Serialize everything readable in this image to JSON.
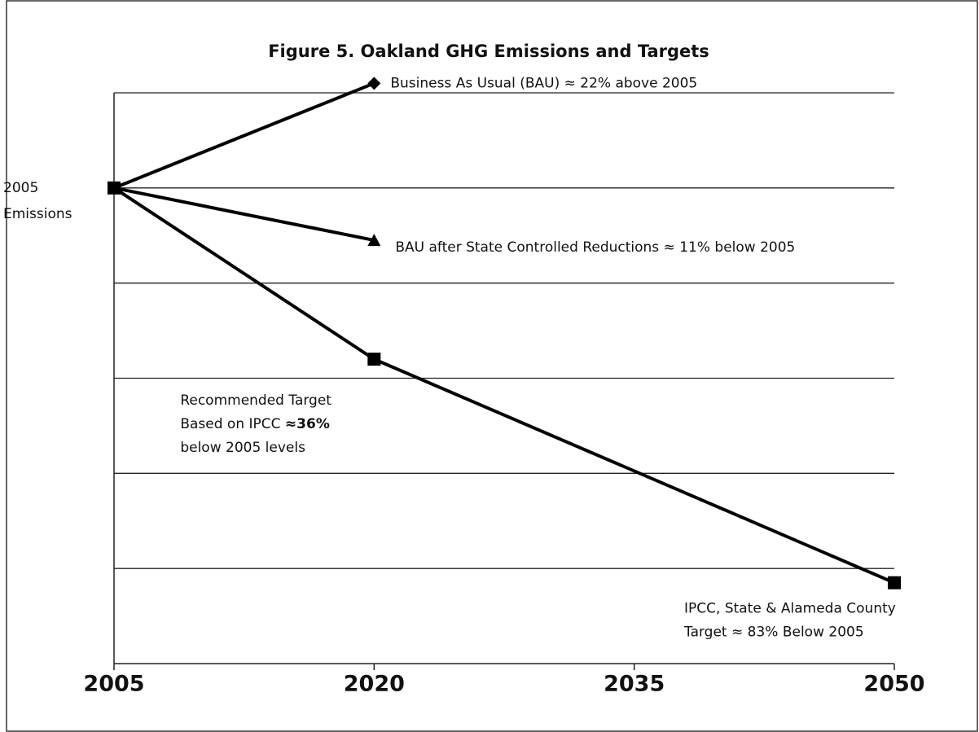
{
  "chart_data": {
    "type": "line",
    "title": "Figure 5. Oakland GHG Emissions and Targets",
    "xlim": [
      2005,
      2050
    ],
    "xticks": [
      2005,
      2020,
      2035,
      2050
    ],
    "ylim": [
      0,
      120
    ],
    "grid_lines": [
      20,
      40,
      60,
      80,
      100,
      120
    ],
    "yticks": [
      {
        "value": 100,
        "label": "2005 Emissions"
      }
    ],
    "grid": true,
    "color": "#000000",
    "series": [
      {
        "marker": "diamond",
        "x": [
          2005,
          2020
        ],
        "values": [
          100,
          122
        ]
      },
      {
        "marker": "triangle",
        "x": [
          2005,
          2020
        ],
        "values": [
          100,
          89
        ]
      },
      {
        "marker": "square",
        "x": [
          2005,
          2020,
          2050
        ],
        "values": [
          100,
          64,
          17
        ]
      }
    ],
    "annotations": [
      {
        "series": 0,
        "point": 1,
        "lines": [
          [
            {
              "text": "Business As Usual  (BAU) ≈ 22% above 2005"
            }
          ]
        ]
      },
      {
        "series": 1,
        "point": 1,
        "lines": [
          [
            {
              "text": "BAU after State Controlled Reductions ≈ 11% below 2005"
            }
          ]
        ]
      },
      {
        "series": 2,
        "point": 1,
        "lines": [
          [
            {
              "text": "Recommended Target"
            }
          ],
          [
            {
              "text": "Based on IPCC "
            },
            {
              "text": "≈36%",
              "bold": true
            }
          ],
          [
            {
              "text": "below 2005 levels"
            }
          ]
        ]
      },
      {
        "series": 2,
        "point": 2,
        "lines": [
          [
            {
              "text": "IPCC, State & Alameda County"
            }
          ],
          [
            {
              "text": "Target ≈ 83% Below 2005"
            }
          ]
        ]
      }
    ]
  }
}
